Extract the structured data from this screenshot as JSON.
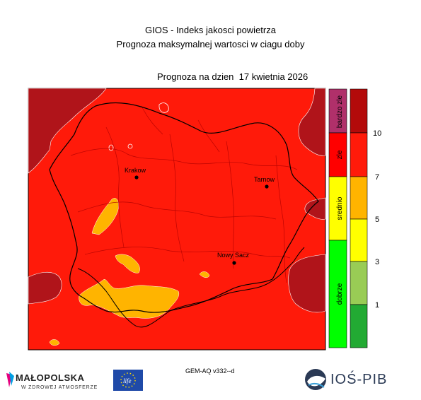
{
  "header": {
    "title_line1": "GIOS - Indeks jakosci powietrza",
    "title_line2": "Prognoza maksymalnej wartosci w ciagu doby",
    "forecast_date": "Prognoza na dzien  17 kwietnia 2026"
  },
  "map": {
    "cities": [
      {
        "name": "Krakow"
      },
      {
        "name": "Tarnow"
      },
      {
        "name": "Nowy Sacz"
      }
    ],
    "colors": {
      "bardzo_zle": "#b0141a",
      "zle": "#ff1a0a",
      "srednio_orange": "#ffb400",
      "srednio_yellow": "#ffff00",
      "dobrze_lightgreen": "#99cc55",
      "dobrze_green": "#22aa33"
    }
  },
  "legend": {
    "categories": [
      {
        "label": "bardzo zle",
        "color": "#b0306a"
      },
      {
        "label": "zle",
        "color": "#ff0000"
      },
      {
        "label": "srednio",
        "color": "#ffff00"
      },
      {
        "label": "dobrze",
        "color": "#00ff00"
      }
    ],
    "scale_colors": [
      "#b30a0a",
      "#ff1a0a",
      "#ffb400",
      "#ffff00",
      "#99cc55",
      "#22aa33"
    ],
    "tick_labels": [
      "10",
      "7",
      "5",
      "3",
      "1"
    ]
  },
  "footer": {
    "model": "GEM-AQ v332--d",
    "malopolska_name": "MAŁOPOLSKA",
    "malopolska_sub": "W ZDROWEJ ATMOSFERZE",
    "ios_name": "IOŚ-PIB"
  }
}
